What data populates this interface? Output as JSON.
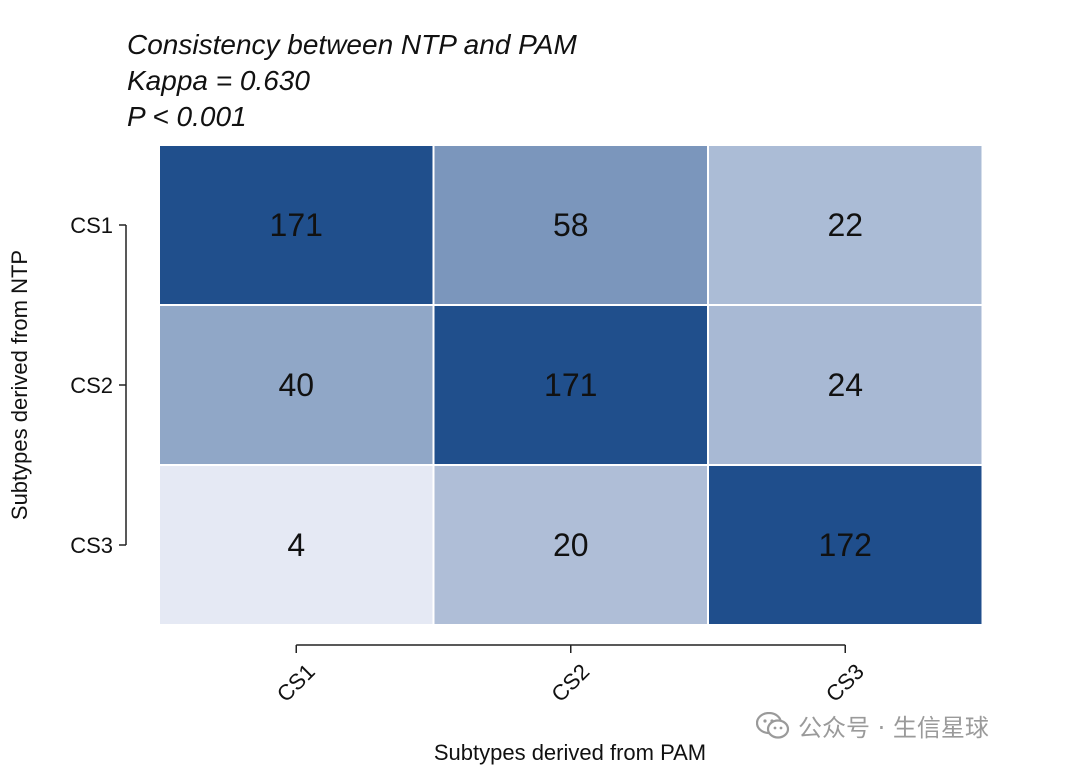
{
  "chart_data": {
    "type": "heatmap",
    "title": [
      "Consistency between NTP and PAM",
      "Kappa = 0.630",
      "P < 0.001"
    ],
    "xlabel": "Subtypes derived from PAM",
    "ylabel": "Subtypes derived from NTP",
    "x_categories": [
      "CS1",
      "CS2",
      "CS3"
    ],
    "y_categories": [
      "CS1",
      "CS2",
      "CS3"
    ],
    "values": [
      [
        171,
        58,
        22
      ],
      [
        40,
        171,
        24
      ],
      [
        4,
        20,
        172
      ]
    ],
    "color_low": "#e5e9f4",
    "color_high": "#1f4e8c",
    "grid_color": "#ffffff",
    "legend": "none"
  },
  "watermark": {
    "icon": "wechat-icon",
    "text": "公众号 · 生信星球"
  }
}
